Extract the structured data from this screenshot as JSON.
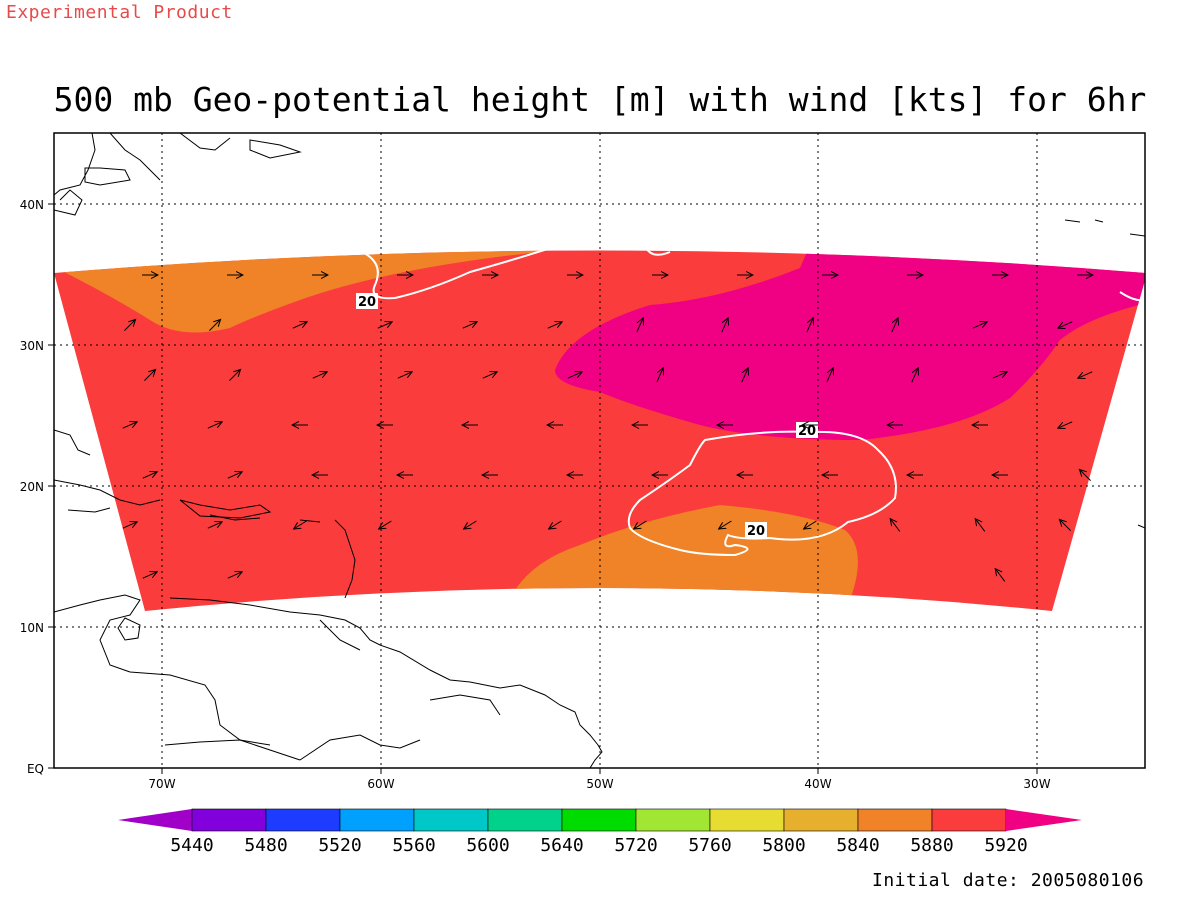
{
  "header": {
    "experimental": "Experimental Product",
    "title": "500 mb Geo-potential height [m] with wind [kts] for 6hr"
  },
  "footer": {
    "initial_date": "Initial date: 2005080106"
  },
  "axes": {
    "lat_ticks": [
      "EQ",
      "10N",
      "20N",
      "30N",
      "40N"
    ],
    "lon_ticks": [
      "70W",
      "60W",
      "50W",
      "40W",
      "30W"
    ]
  },
  "colorbar": {
    "labels": [
      "5440",
      "5480",
      "5520",
      "5560",
      "5600",
      "5640",
      "5720",
      "5760",
      "5800",
      "5840",
      "5880",
      "5920"
    ],
    "colors": [
      "#a000c8",
      "#8200dc",
      "#1e3cff",
      "#00a0ff",
      "#00c8c8",
      "#00d28c",
      "#00dc00",
      "#a0e632",
      "#e6dc32",
      "#e6af2d",
      "#f08228",
      "#fa3c3c",
      "#f00082"
    ]
  },
  "map": {
    "fill_colors": {
      "c5840": "#e6af2d",
      "c5880": "#f08228",
      "c5920": "#fa3c3c",
      "c5960": "#f00082"
    },
    "wind_contour_label": "20",
    "contour_color": "#ffffff",
    "coast_color": "#000000"
  }
}
